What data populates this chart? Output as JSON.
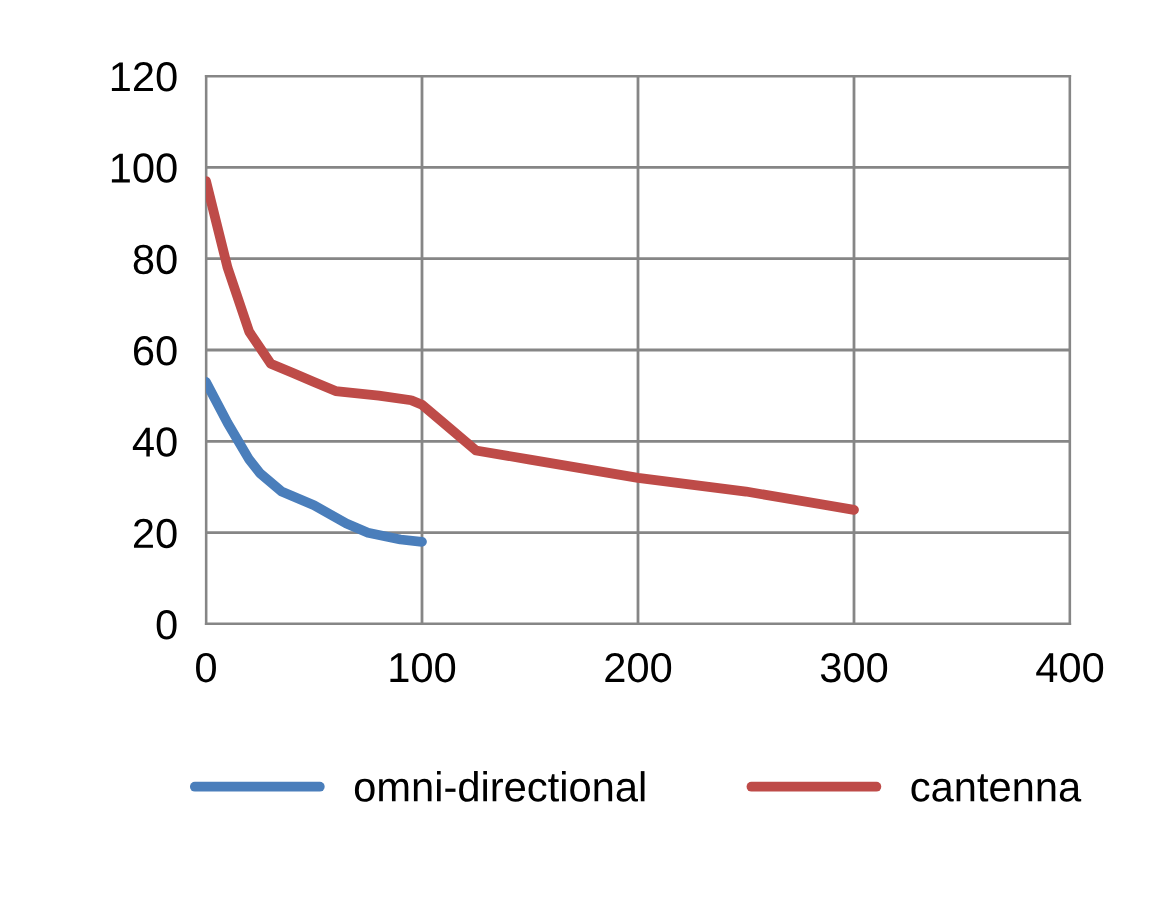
{
  "chart_data": {
    "type": "line",
    "xlim": [
      0,
      400
    ],
    "xticks": [
      0,
      100,
      200,
      300,
      400
    ],
    "ylim": [
      0,
      120
    ],
    "yticks": [
      0,
      20,
      40,
      60,
      80,
      100,
      120
    ],
    "grid": true,
    "legend": "bottom",
    "marker": "none",
    "line_style": "solid",
    "series": [
      {
        "name": "omni-directional",
        "color": "#4a7ebb",
        "x": [
          0,
          10,
          20,
          25,
          35,
          50,
          65,
          75,
          90,
          100
        ],
        "values": [
          53,
          44,
          36,
          33,
          29,
          26,
          22,
          20,
          18.5,
          18
        ]
      },
      {
        "name": "cantenna",
        "color": "#be4b48",
        "x": [
          0,
          10,
          20,
          30,
          40,
          50,
          60,
          80,
          95,
          100,
          110,
          125,
          150,
          200,
          250,
          300
        ],
        "values": [
          97,
          78,
          64,
          57,
          55,
          53,
          51,
          50,
          49,
          48,
          44,
          38,
          36,
          32,
          29,
          25
        ]
      }
    ]
  }
}
